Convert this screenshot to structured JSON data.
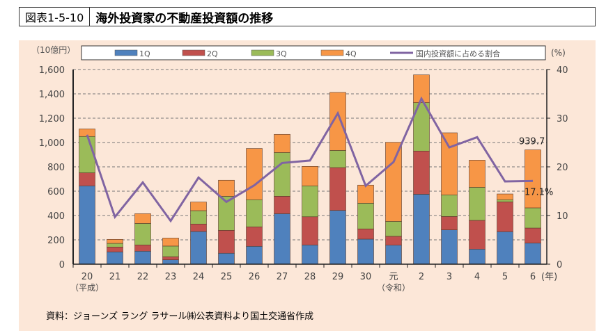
{
  "figure_number": "図表1-5-10",
  "title": "海外投資家の不動産投資額の推移",
  "source": "資料：ジョーンズ ラング ラサール㈱公表資料より国土交通省作成",
  "colors": {
    "1Q": "#4f81bd",
    "2Q": "#c0504d",
    "3Q": "#9bbb59",
    "4Q": "#f79646",
    "line": "#8064a2",
    "background": "#fce7d8"
  },
  "chart_data": {
    "type": "bar+line",
    "categories": [
      "20",
      "21",
      "22",
      "23",
      "24",
      "25",
      "26",
      "27",
      "28",
      "29",
      "30",
      "元",
      "2",
      "3",
      "4",
      "5",
      "6"
    ],
    "era_labels": {
      "20": "（平成）",
      "元": "（令和）"
    },
    "x_unit": "(年)",
    "ylabel_left": "（10億円）",
    "ylabel_right": "(%)",
    "ylim_left": [
      0,
      1600
    ],
    "yticks_left": [
      "0",
      "200",
      "400",
      "600",
      "800",
      "1,000",
      "1,200",
      "1,400",
      "1,600"
    ],
    "ylim_right": [
      0,
      40
    ],
    "yticks_right": [
      "0",
      "10",
      "20",
      "30",
      "40"
    ],
    "grid": true,
    "legend_placement": "top",
    "series": [
      {
        "name": "1Q",
        "type": "stacked-bar",
        "values": [
          644,
          101,
          107,
          36,
          269,
          90,
          147,
          415,
          158,
          442,
          206,
          156,
          575,
          282,
          124,
          267,
          173
        ]
      },
      {
        "name": "2Q",
        "type": "stacked-bar",
        "values": [
          107,
          40,
          51,
          25,
          61,
          188,
          160,
          143,
          232,
          352,
          84,
          73,
          355,
          110,
          236,
          245,
          124
        ]
      },
      {
        "name": "3Q",
        "type": "stacked-bar",
        "values": [
          299,
          30,
          177,
          88,
          110,
          280,
          223,
          360,
          254,
          141,
          211,
          123,
          398,
          178,
          272,
          18,
          166
        ]
      },
      {
        "name": "4Q",
        "type": "stacked-bar",
        "values": [
          62,
          33,
          80,
          66,
          71,
          132,
          421,
          149,
          160,
          477,
          149,
          650,
          228,
          510,
          223,
          47,
          476.7
        ]
      },
      {
        "name": "国内投資額に占める割合",
        "type": "line",
        "axis": "right",
        "values": [
          26.6,
          9.7,
          16.8,
          8.9,
          17.8,
          12.8,
          16.2,
          20.8,
          21.3,
          31.0,
          16.1,
          21.0,
          34.0,
          24.0,
          26.1,
          17.0,
          17.1
        ]
      }
    ],
    "annotations": [
      "939.7",
      "17.1%"
    ]
  }
}
